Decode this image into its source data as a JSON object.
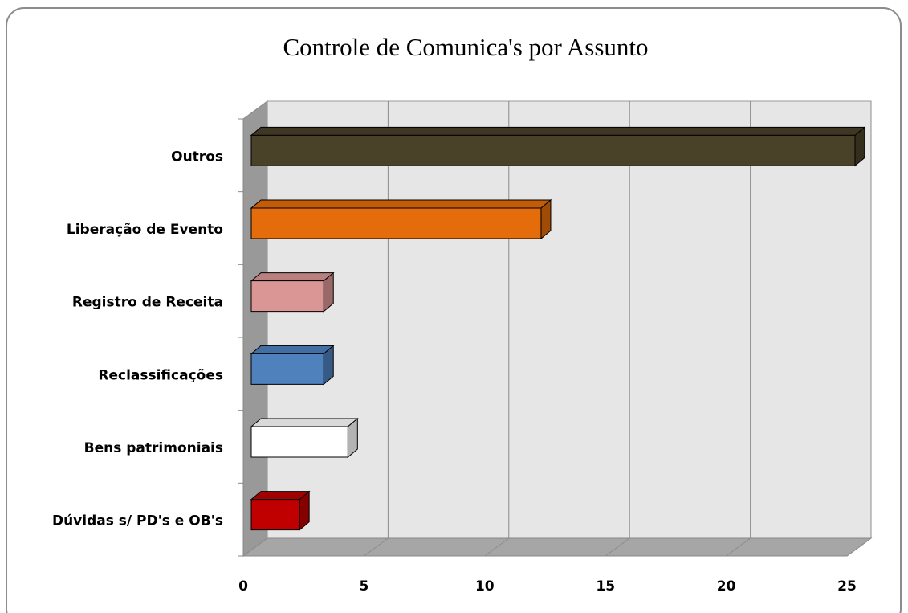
{
  "chart_data": {
    "type": "bar3d_horizontal",
    "title": "Controle de Comunica's por Assunto",
    "categories": [
      "Outros",
      "Liberação de Evento",
      "Registro de Receita",
      "Reclassificações",
      "Bens patrimoniais",
      "Dúvidas s/ PD's e OB's"
    ],
    "values": [
      25,
      12,
      3,
      3,
      4,
      2
    ],
    "colors": [
      "#4a4129",
      "#e46c0a",
      "#d99694",
      "#4f81bd",
      "#ffffff",
      "#c00000"
    ],
    "xlim": [
      0,
      25
    ],
    "xticks": [
      0,
      5,
      10,
      15,
      20,
      25
    ],
    "grid": true
  }
}
